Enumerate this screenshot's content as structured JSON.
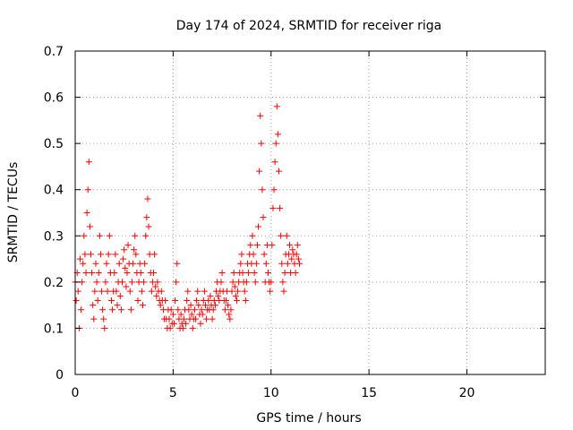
{
  "chart_data": {
    "type": "scatter",
    "title": "Day 174 of 2024, SRMTID for receiver riga",
    "xlabel": "GPS time / hours",
    "ylabel": "SRMTID / TECUs",
    "xlim": [
      0,
      24
    ],
    "ylim": [
      0,
      0.7
    ],
    "x_ticks": [
      0,
      5,
      10,
      15,
      20
    ],
    "x_tick_labels": [
      "0",
      "5",
      "10",
      "15",
      "20"
    ],
    "y_ticks": [
      0,
      0.1,
      0.2,
      0.3,
      0.4,
      0.5,
      0.6,
      0.7
    ],
    "y_tick_labels": [
      "0",
      "0.1",
      "0.2",
      "0.3",
      "0.4",
      "0.5",
      "0.6",
      "0.7"
    ],
    "grid": true,
    "marker": "+",
    "marker_color": "#ff0000",
    "series": [
      {
        "name": "riga",
        "x_start": 0.0,
        "x_step": 0.05,
        "values": [
          0.2,
          0.16,
          0.22,
          0.18,
          0.1,
          0.25,
          0.14,
          0.2,
          0.24,
          0.3,
          0.26,
          0.22,
          0.35,
          0.4,
          0.46,
          0.32,
          0.26,
          0.22,
          0.15,
          0.12,
          0.18,
          0.24,
          0.2,
          0.16,
          0.22,
          0.3,
          0.26,
          0.18,
          0.14,
          0.12,
          0.1,
          0.2,
          0.24,
          0.18,
          0.26,
          0.3,
          0.22,
          0.16,
          0.14,
          0.18,
          0.22,
          0.26,
          0.18,
          0.15,
          0.2,
          0.24,
          0.17,
          0.14,
          0.2,
          0.25,
          0.27,
          0.23,
          0.19,
          0.22,
          0.28,
          0.24,
          0.18,
          0.14,
          0.2,
          0.24,
          0.27,
          0.3,
          0.26,
          0.22,
          0.16,
          0.2,
          0.24,
          0.22,
          0.18,
          0.15,
          0.2,
          0.24,
          0.3,
          0.34,
          0.38,
          0.32,
          0.26,
          0.22,
          0.18,
          0.2,
          0.22,
          0.26,
          0.19,
          0.17,
          0.2,
          0.18,
          0.16,
          0.15,
          0.18,
          0.16,
          0.14,
          0.12,
          0.16,
          0.12,
          0.1,
          0.14,
          0.12,
          0.1,
          0.14,
          0.11,
          0.13,
          0.11,
          0.16,
          0.2,
          0.24,
          0.14,
          0.12,
          0.1,
          0.13,
          0.11,
          0.1,
          0.12,
          0.14,
          0.11,
          0.16,
          0.18,
          0.14,
          0.12,
          0.15,
          0.13,
          0.1,
          0.12,
          0.14,
          0.12,
          0.16,
          0.18,
          0.15,
          0.13,
          0.11,
          0.14,
          0.13,
          0.16,
          0.18,
          0.15,
          0.12,
          0.14,
          0.16,
          0.14,
          0.17,
          0.15,
          0.12,
          0.14,
          0.16,
          0.15,
          0.18,
          0.2,
          0.17,
          0.16,
          0.18,
          0.2,
          0.22,
          0.18,
          0.16,
          0.14,
          0.16,
          0.18,
          0.15,
          0.13,
          0.12,
          0.14,
          0.18,
          0.2,
          0.22,
          0.19,
          0.17,
          0.16,
          0.18,
          0.2,
          0.22,
          0.24,
          0.26,
          0.22,
          0.2,
          0.18,
          0.16,
          0.2,
          0.24,
          0.22,
          0.26,
          0.28,
          0.24,
          0.3,
          0.26,
          0.22,
          0.2,
          0.24,
          0.28,
          0.32,
          0.44,
          0.56,
          0.5,
          0.4,
          0.34,
          0.26,
          0.2,
          0.24,
          0.28,
          0.22,
          0.2,
          0.18,
          0.2,
          0.28,
          0.36,
          0.4,
          0.46,
          0.5,
          0.58,
          0.52,
          0.44,
          0.36,
          0.3,
          0.24,
          0.2,
          0.18,
          0.22,
          0.26,
          0.3,
          0.24,
          0.26,
          0.28,
          0.22,
          0.25,
          0.27,
          0.26,
          0.24,
          0.22,
          0.26,
          0.28,
          0.25,
          0.24
        ]
      }
    ]
  }
}
